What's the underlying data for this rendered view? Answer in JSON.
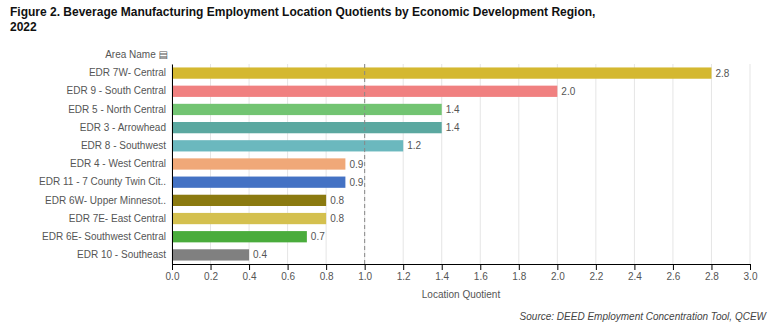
{
  "chart_data": {
    "type": "bar",
    "orientation": "horizontal",
    "title": "Figure 2. Beverage Manufacturing Employment Location Quotients by Economic Development Region,\n2022",
    "xlabel": "Location Quotient",
    "ylabel": "Area Name ▤",
    "categories": [
      "EDR 10 - Southeast",
      "EDR 6E- Southwest Central",
      "EDR 7E- East Central",
      "EDR 6W- Upper Minnesot..",
      "EDR 11 - 7 County Twin Cit..",
      "EDR 4 - West Central",
      "EDR 8 - Southwest",
      "EDR 3 - Arrowhead",
      "EDR 5 - North Central",
      "EDR 9 - South Central",
      "EDR 7W- Central"
    ],
    "values": [
      0.4,
      0.7,
      0.8,
      0.8,
      0.9,
      0.9,
      1.2,
      1.4,
      1.4,
      2.0,
      2.8
    ],
    "value_labels": [
      "0.4",
      "0.7",
      "0.8",
      "0.8",
      "0.9",
      "0.9",
      "1.2",
      "1.4",
      "1.4",
      "2.0",
      "2.8"
    ],
    "data_labels": true,
    "colors": [
      "#808080",
      "#4aac3c",
      "#d4c04e",
      "#8b7a10",
      "#4472c4",
      "#f0a878",
      "#6bb8be",
      "#5ba8a0",
      "#72c472",
      "#f08080",
      "#d4b830"
    ],
    "xlim": [
      0.0,
      3.0
    ],
    "xticks": [
      {
        "value": 0,
        "label": "0.0"
      },
      0.2,
      0.4,
      0.6,
      0.8,
      {
        "value": 1,
        "label": "1.0"
      },
      1.2,
      1.4,
      1.6,
      1.8,
      {
        "value": 2,
        "label": "2.0"
      },
      2.2,
      2.4,
      2.6,
      2.8,
      {
        "value": 3,
        "label": "3.0"
      }
    ],
    "grid": true,
    "annotations": [
      {
        "text": "Source: DEED Employment Concentration Tool, QCEW"
      },
      {
        "x": 1.0,
        "line_style": "dashed"
      }
    ]
  }
}
